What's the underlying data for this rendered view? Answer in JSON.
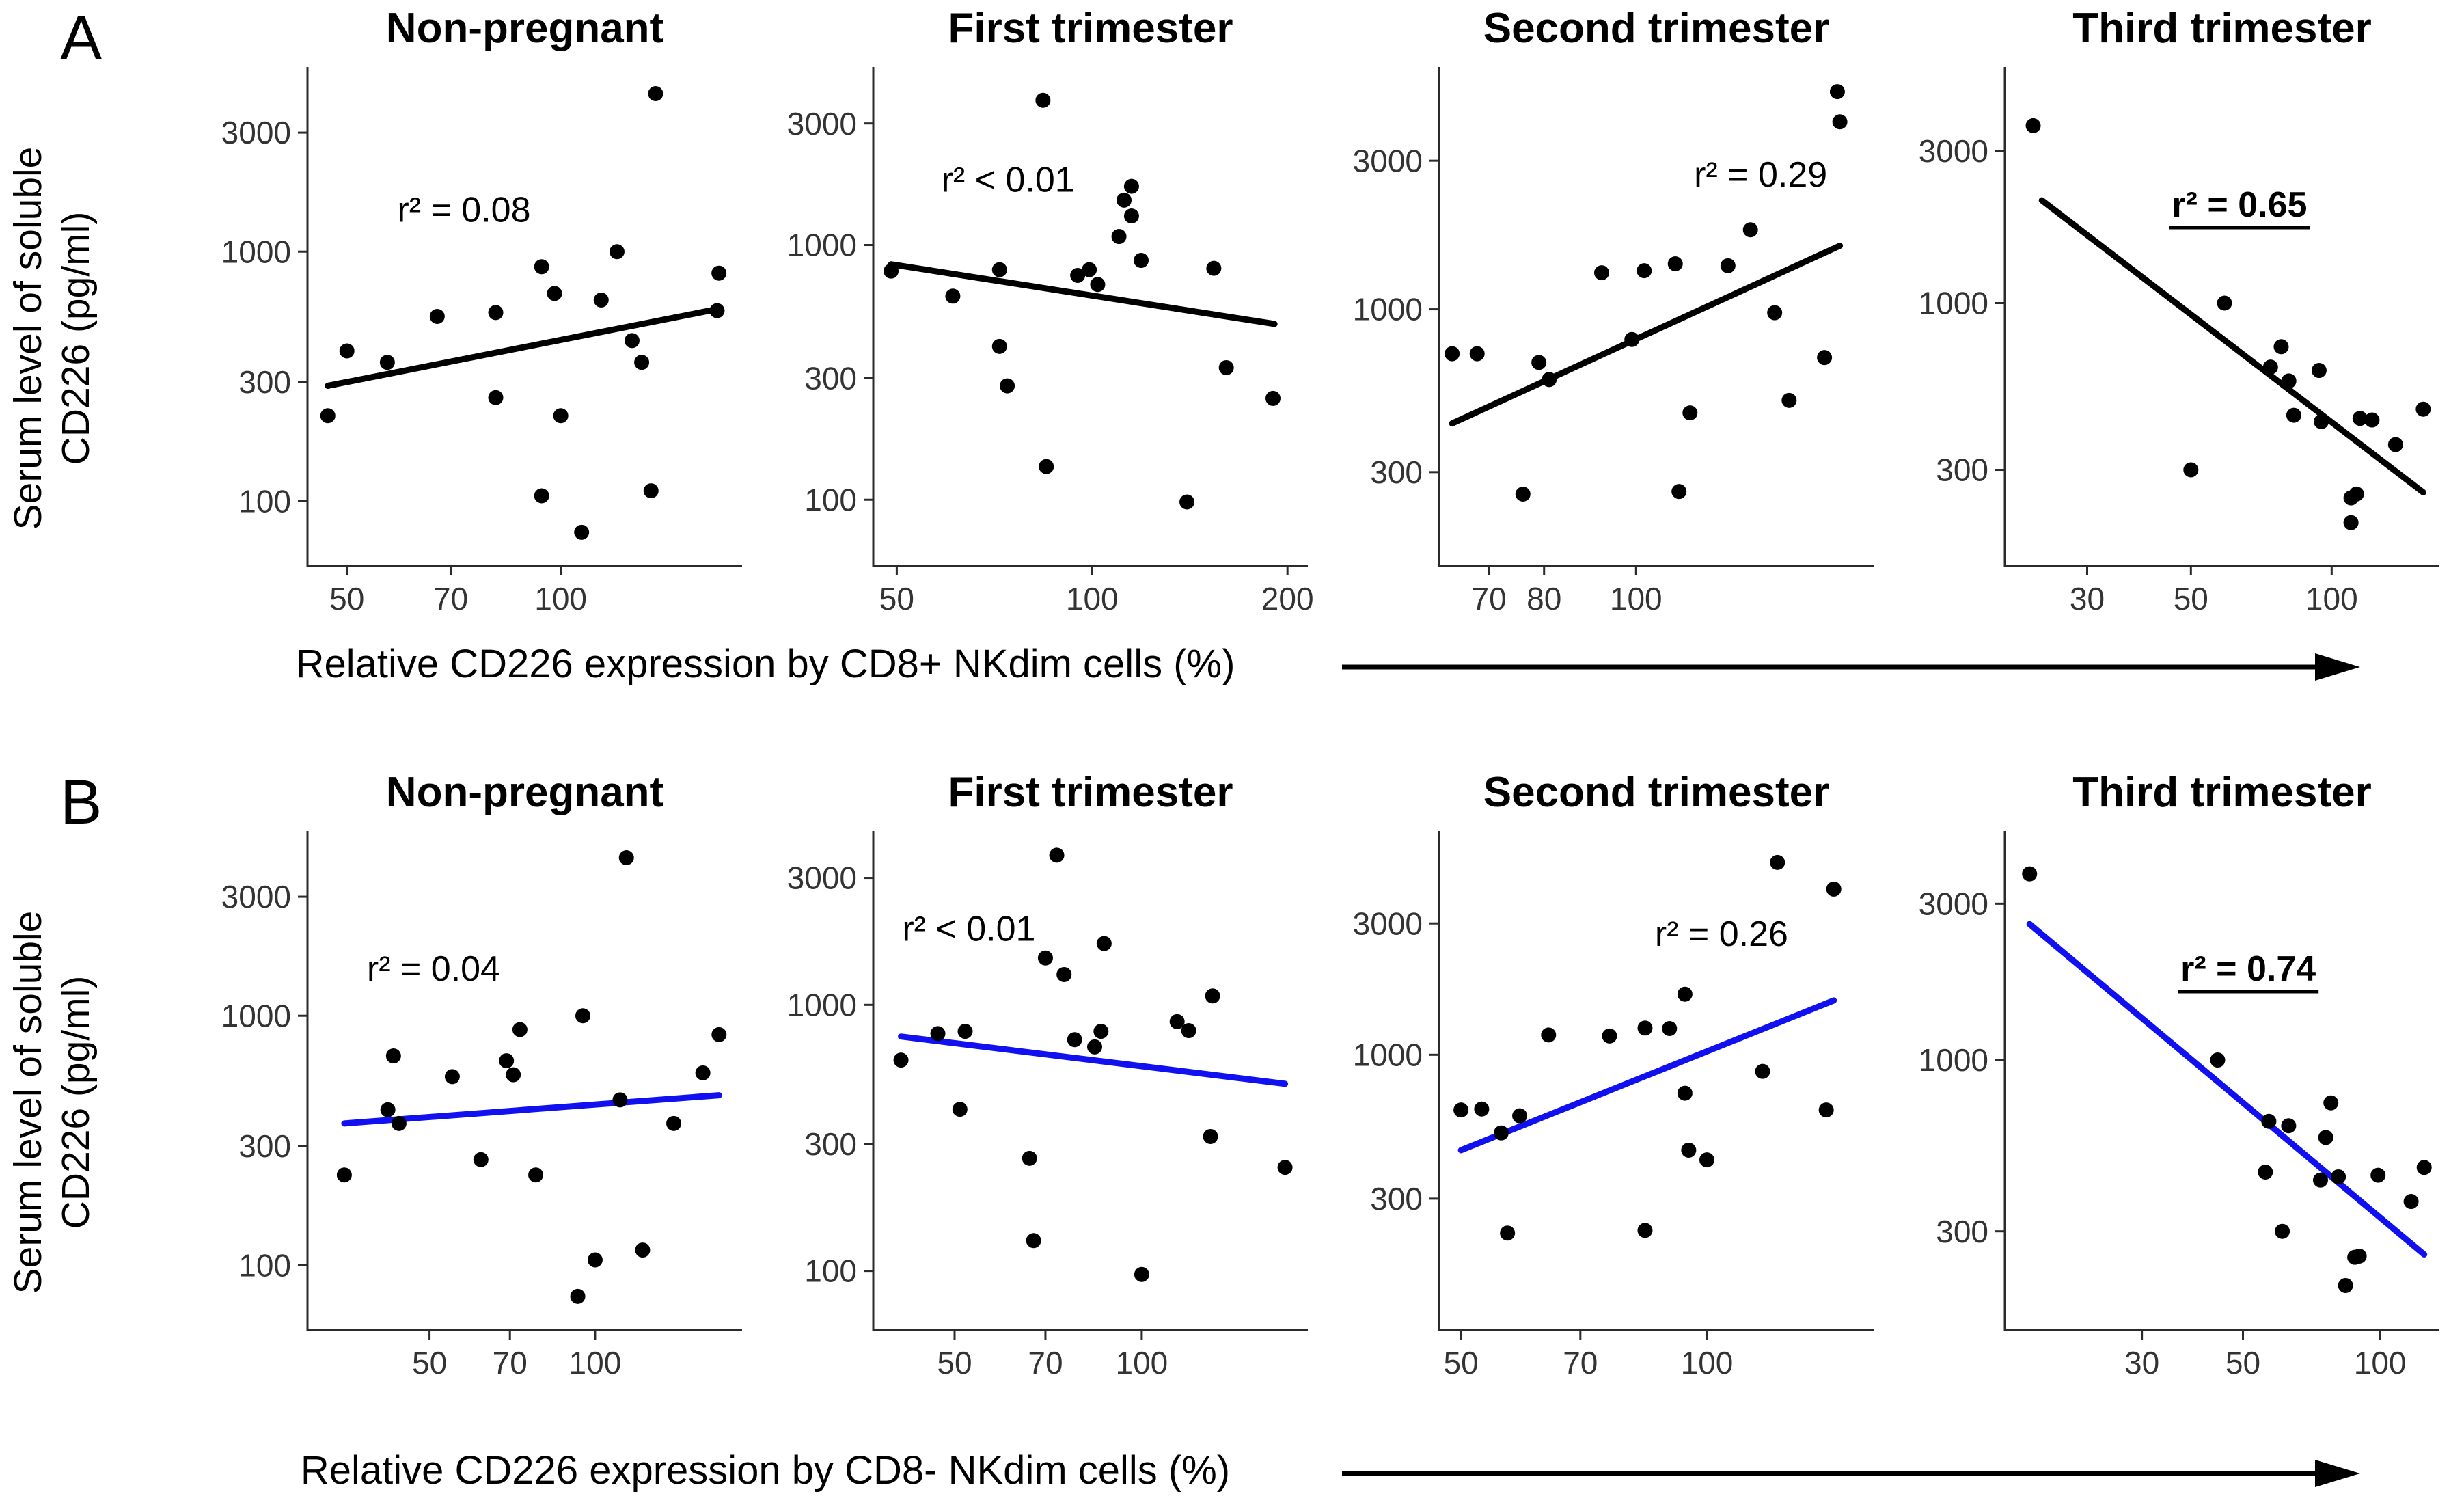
{
  "labels": {
    "row_a": {
      "letter": "A",
      "y_title_line1": "Serum level of soluble",
      "y_title_line2": "CD226 (pg/ml)",
      "x_title": "Relative CD226 expression by CD8+ NKdim cells (%)"
    },
    "row_b": {
      "letter": "B",
      "y_title_line1": "Serum level of soluble",
      "y_title_line2": "CD226 (pg/ml)",
      "x_title": "Relative CD226 expression by CD8- NKdim cells (%)"
    }
  },
  "colors": {
    "trend_row_a": "#000000",
    "trend_row_b": "#1010f0",
    "point": "#000000",
    "axis": "#2b2b2b",
    "tick_text": "#333333"
  },
  "chart_data": [
    {
      "id": "a1",
      "row": "A",
      "type": "scatter",
      "title": "Non-pregnant",
      "r2_label": "r² = 0.08",
      "r2_bold": false,
      "r2_underline": false,
      "r2_pos": [
        0.36,
        0.31
      ],
      "x_scale": "log",
      "y_scale": "log",
      "x_ticks": [
        50,
        70,
        100
      ],
      "y_ticks": [
        100,
        300,
        1000,
        3000
      ],
      "x_range": [
        44,
        180
      ],
      "y_range": [
        55,
        5500
      ],
      "trend": [
        [
          47,
          290
        ],
        [
          167,
          590
        ]
      ],
      "points": [
        [
          136,
          4300
        ],
        [
          120,
          1000
        ],
        [
          94,
          870
        ],
        [
          167,
          820
        ],
        [
          98,
          680
        ],
        [
          114,
          640
        ],
        [
          81,
          570
        ],
        [
          67,
          550
        ],
        [
          166,
          580
        ],
        [
          126,
          440
        ],
        [
          50,
          400
        ],
        [
          57,
          360
        ],
        [
          130,
          360
        ],
        [
          81,
          260
        ],
        [
          47,
          220
        ],
        [
          100,
          220
        ],
        [
          134,
          110
        ],
        [
          94,
          105
        ],
        [
          107,
          75
        ]
      ]
    },
    {
      "id": "a2",
      "row": "A",
      "type": "scatter",
      "title": "First trimester",
      "r2_label": "r² < 0.01",
      "r2_bold": false,
      "r2_underline": false,
      "r2_pos": [
        0.31,
        0.25
      ],
      "x_scale": "log",
      "y_scale": "log",
      "x_ticks": [
        50,
        100,
        200
      ],
      "y_ticks": [
        100,
        300,
        1000,
        3000
      ],
      "x_range": [
        46,
        215
      ],
      "y_range": [
        55,
        5000
      ],
      "trend": [
        [
          49,
          840
        ],
        [
          191,
          490
        ]
      ],
      "points": [
        [
          84,
          3700
        ],
        [
          115,
          1700
        ],
        [
          112,
          1500
        ],
        [
          115,
          1300
        ],
        [
          110,
          1080
        ],
        [
          119,
          870
        ],
        [
          49,
          790
        ],
        [
          72,
          800
        ],
        [
          99,
          800
        ],
        [
          95,
          760
        ],
        [
          102,
          700
        ],
        [
          154,
          810
        ],
        [
          61,
          630
        ],
        [
          72,
          400
        ],
        [
          161,
          330
        ],
        [
          74,
          280
        ],
        [
          190,
          250
        ],
        [
          85,
          135
        ],
        [
          140,
          98
        ]
      ]
    },
    {
      "id": "a3",
      "row": "A",
      "type": "scatter",
      "title": "Second trimester",
      "r2_label": "r² = 0.29",
      "r2_bold": false,
      "r2_underline": false,
      "r2_pos": [
        0.74,
        0.24
      ],
      "x_scale": "log",
      "y_scale": "log",
      "x_ticks": [
        70,
        80,
        100
      ],
      "y_ticks": [
        300,
        1000,
        3000
      ],
      "x_range": [
        62,
        178
      ],
      "y_range": [
        150,
        6000
      ],
      "trend": [
        [
          64,
          430
        ],
        [
          164,
          1600
        ]
      ],
      "points": [
        [
          163,
          5000
        ],
        [
          164,
          4000
        ],
        [
          132,
          1800
        ],
        [
          110,
          1400
        ],
        [
          125,
          1380
        ],
        [
          102,
          1330
        ],
        [
          92,
          1310
        ],
        [
          140,
          975
        ],
        [
          99,
          800
        ],
        [
          64,
          720
        ],
        [
          68,
          720
        ],
        [
          79,
          675
        ],
        [
          158,
          700
        ],
        [
          81,
          595
        ],
        [
          145,
          510
        ],
        [
          114,
          465
        ],
        [
          76,
          255
        ],
        [
          111,
          260
        ]
      ]
    },
    {
      "id": "a4",
      "row": "A",
      "type": "scatter",
      "title": "Third trimester",
      "r2_label": "r² = 0.65",
      "r2_bold": true,
      "r2_underline": true,
      "r2_pos": [
        0.54,
        0.3
      ],
      "x_scale": "log",
      "y_scale": "log",
      "x_ticks": [
        30,
        50,
        100
      ],
      "y_ticks": [
        300,
        1000,
        3000
      ],
      "x_range": [
        20,
        170
      ],
      "y_range": [
        150,
        5500
      ],
      "trend": [
        [
          24,
          2100
        ],
        [
          157,
          255
        ]
      ],
      "points": [
        [
          23,
          3600
        ],
        [
          59,
          1000
        ],
        [
          78,
          730
        ],
        [
          74,
          630
        ],
        [
          81,
          570
        ],
        [
          94,
          615
        ],
        [
          83,
          445
        ],
        [
          95,
          425
        ],
        [
          115,
          435
        ],
        [
          122,
          430
        ],
        [
          157,
          465
        ],
        [
          137,
          360
        ],
        [
          50,
          300
        ],
        [
          110,
          245
        ],
        [
          113,
          252
        ],
        [
          110,
          205
        ]
      ]
    },
    {
      "id": "b1",
      "row": "B",
      "type": "scatter",
      "title": "Non-pregnant",
      "r2_label": "r² = 0.04",
      "r2_bold": false,
      "r2_underline": false,
      "r2_pos": [
        0.29,
        0.3
      ],
      "x_scale": "log",
      "y_scale": "log",
      "x_ticks": [
        50,
        70,
        100
      ],
      "y_ticks": [
        100,
        300,
        1000,
        3000
      ],
      "x_range": [
        30,
        185
      ],
      "y_range": [
        55,
        5500
      ],
      "trend": [
        [
          35,
          370
        ],
        [
          168,
          480
        ]
      ],
      "points": [
        [
          114,
          4300
        ],
        [
          95,
          1000
        ],
        [
          73,
          880
        ],
        [
          168,
          840
        ],
        [
          43,
          690
        ],
        [
          69,
          660
        ],
        [
          55,
          570
        ],
        [
          71,
          580
        ],
        [
          157,
          590
        ],
        [
          111,
          460
        ],
        [
          42,
          420
        ],
        [
          44,
          370
        ],
        [
          139,
          370
        ],
        [
          62,
          265
        ],
        [
          35,
          230
        ],
        [
          78,
          230
        ],
        [
          122,
          115
        ],
        [
          100,
          105
        ],
        [
          93,
          75
        ]
      ]
    },
    {
      "id": "b2",
      "row": "B",
      "type": "scatter",
      "title": "First trimester",
      "r2_label": "r² < 0.01",
      "r2_bold": false,
      "r2_underline": false,
      "r2_pos": [
        0.22,
        0.22
      ],
      "x_scale": "log",
      "y_scale": "log",
      "x_ticks": [
        50,
        70,
        100
      ],
      "y_ticks": [
        100,
        300,
        1000,
        3000
      ],
      "x_range": [
        37,
        185
      ],
      "y_range": [
        60,
        4500
      ],
      "trend": [
        [
          41,
          760
        ],
        [
          170,
          505
        ]
      ],
      "points": [
        [
          73,
          3650
        ],
        [
          87,
          1700
        ],
        [
          70,
          1500
        ],
        [
          75,
          1300
        ],
        [
          130,
          1080
        ],
        [
          114,
          865
        ],
        [
          119,
          800
        ],
        [
          47,
          780
        ],
        [
          52,
          795
        ],
        [
          86,
          795
        ],
        [
          78,
          740
        ],
        [
          84,
          695
        ],
        [
          41,
          620
        ],
        [
          51,
          405
        ],
        [
          129,
          320
        ],
        [
          66,
          265
        ],
        [
          170,
          245
        ],
        [
          67,
          130
        ],
        [
          100,
          97
        ]
      ]
    },
    {
      "id": "b3",
      "row": "B",
      "type": "scatter",
      "title": "Second trimester",
      "r2_label": "r² = 0.26",
      "r2_bold": false,
      "r2_underline": false,
      "r2_pos": [
        0.65,
        0.23
      ],
      "x_scale": "log",
      "y_scale": "log",
      "x_ticks": [
        50,
        70,
        100
      ],
      "y_ticks": [
        300,
        1000,
        3000
      ],
      "x_range": [
        47,
        160
      ],
      "y_range": [
        100,
        6500
      ],
      "trend": [
        [
          50,
          450
        ],
        [
          143,
          1575
        ]
      ],
      "points": [
        [
          122,
          5000
        ],
        [
          143,
          4000
        ],
        [
          94,
          1660
        ],
        [
          84,
          1250
        ],
        [
          90,
          1245
        ],
        [
          76,
          1170
        ],
        [
          64,
          1180
        ],
        [
          117,
          870
        ],
        [
          94,
          725
        ],
        [
          50,
          630
        ],
        [
          53,
          635
        ],
        [
          59,
          600
        ],
        [
          140,
          630
        ],
        [
          56,
          520
        ],
        [
          95,
          450
        ],
        [
          100,
          415
        ],
        [
          57,
          225
        ],
        [
          84,
          230
        ]
      ]
    },
    {
      "id": "b4",
      "row": "B",
      "type": "scatter",
      "title": "Third trimester",
      "r2_label": "r² = 0.74",
      "r2_bold": true,
      "r2_underline": true,
      "r2_pos": [
        0.56,
        0.3
      ],
      "x_scale": "log",
      "y_scale": "log",
      "x_ticks": [
        30,
        50,
        100
      ],
      "y_ticks": [
        300,
        1000,
        3000
      ],
      "x_range": [
        15,
        135
      ],
      "y_range": [
        150,
        5000
      ],
      "trend": [
        [
          17,
          2600
        ],
        [
          125,
          255
        ]
      ],
      "points": [
        [
          17,
          3700
        ],
        [
          44,
          1000
        ],
        [
          78,
          740
        ],
        [
          57,
          650
        ],
        [
          63,
          630
        ],
        [
          76,
          580
        ],
        [
          56,
          455
        ],
        [
          74,
          430
        ],
        [
          81,
          440
        ],
        [
          99,
          445
        ],
        [
          125,
          470
        ],
        [
          117,
          370
        ],
        [
          61,
          300
        ],
        [
          88,
          250
        ],
        [
          90,
          252
        ],
        [
          84,
          205
        ]
      ]
    }
  ]
}
